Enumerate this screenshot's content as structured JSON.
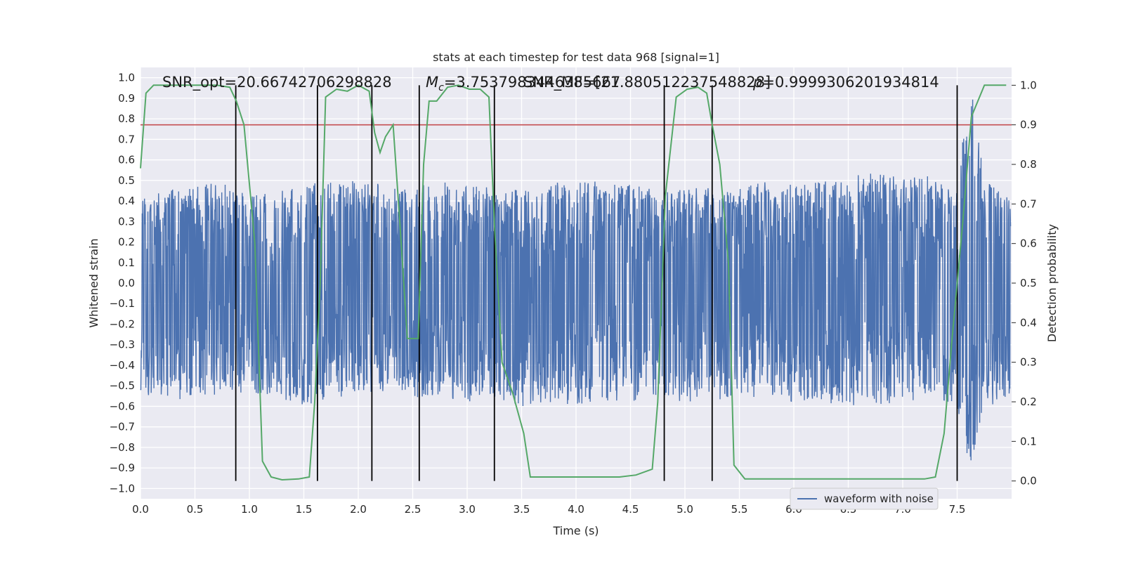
{
  "chart_data": {
    "type": "line",
    "title": "stats at each timestep for test data 968 [signal=1]",
    "xlabel": "Time (s)",
    "ylabel": "Whitened strain",
    "y2label": "Detection probability",
    "xlim": [
      0.0,
      8.0
    ],
    "ylim": [
      -1.05,
      1.05
    ],
    "y2lim": [
      -0.045,
      1.045
    ],
    "grid": true,
    "x_ticks": [
      "0.0",
      "0.5",
      "1.0",
      "1.5",
      "2.0",
      "2.5",
      "3.0",
      "3.5",
      "4.0",
      "4.5",
      "5.0",
      "5.5",
      "6.0",
      "6.5",
      "7.0",
      "7.5"
    ],
    "y_ticks": [
      "1.0",
      "0.9",
      "0.8",
      "0.7",
      "0.6",
      "0.5",
      "0.4",
      "0.3",
      "0.2",
      "0.1",
      "0.0",
      "−0.1",
      "−0.2",
      "−0.3",
      "−0.4",
      "−0.5",
      "−0.6",
      "−0.7",
      "−0.8",
      "−0.9",
      "−1.0"
    ],
    "y2_ticks": [
      "1.0",
      "0.9",
      "0.8",
      "0.7",
      "0.6",
      "0.5",
      "0.4",
      "0.3",
      "0.2",
      "0.1",
      "0.0"
    ],
    "annotations": {
      "snr_opt": "SNR_opt=20.66742706298828",
      "mc": "=3.7537983446385667",
      "mc_symbol": "M",
      "mc_sub": "c",
      "snr_mf": "SNR_MF=[21.880512237548828]",
      "p_value": "=0.9999306201934814",
      "p_symbol": "p"
    },
    "legend": {
      "placement": "lower-right",
      "entries": [
        "waveform with noise"
      ]
    },
    "series": [
      {
        "name": "waveform with noise",
        "color": "#4c72b0",
        "style": "dense noise",
        "envelope_x": [
          0.0,
          0.25,
          0.5,
          0.75,
          1.0,
          1.25,
          1.5,
          1.75,
          2.0,
          2.25,
          2.5,
          2.75,
          3.0,
          3.25,
          3.5,
          3.75,
          4.0,
          4.25,
          4.5,
          4.75,
          5.0,
          5.25,
          5.5,
          5.75,
          6.0,
          6.25,
          6.5,
          6.75,
          7.0,
          7.25,
          7.5,
          7.62,
          7.75,
          7.99
        ],
        "envelope_upper": [
          0.42,
          0.45,
          0.48,
          0.5,
          0.44,
          0.46,
          0.47,
          0.52,
          0.5,
          0.48,
          0.46,
          0.5,
          0.48,
          0.47,
          0.45,
          0.5,
          0.49,
          0.5,
          0.48,
          0.45,
          0.48,
          0.47,
          0.46,
          0.5,
          0.48,
          0.5,
          0.52,
          0.54,
          0.52,
          0.52,
          0.5,
          0.98,
          0.5,
          0.42
        ],
        "envelope_lower": [
          -0.55,
          -0.57,
          -0.56,
          -0.55,
          -0.53,
          -0.56,
          -0.6,
          -0.56,
          -0.57,
          -0.55,
          -0.57,
          -0.55,
          -0.58,
          -0.56,
          -0.6,
          -0.58,
          -0.6,
          -0.57,
          -0.58,
          -0.56,
          -0.58,
          -0.57,
          -0.56,
          -0.55,
          -0.58,
          -0.6,
          -0.6,
          -0.6,
          -0.58,
          -0.57,
          -0.6,
          -0.92,
          -0.62,
          -0.55
        ]
      },
      {
        "name": "",
        "axis": "right",
        "color": "#55a868",
        "x": [
          0.0,
          0.05,
          0.12,
          0.25,
          0.4,
          0.55,
          0.7,
          0.82,
          0.88,
          0.95,
          1.05,
          1.12,
          1.2,
          1.3,
          1.45,
          1.55,
          1.6,
          1.65,
          1.7,
          1.8,
          1.9,
          2.0,
          2.1,
          2.15,
          2.2,
          2.25,
          2.32,
          2.38,
          2.45,
          2.55,
          2.6,
          2.65,
          2.72,
          2.82,
          2.92,
          3.02,
          3.12,
          3.2,
          3.25,
          3.32,
          3.42,
          3.52,
          3.58,
          3.65,
          3.75,
          3.85,
          4.0,
          4.2,
          4.4,
          4.55,
          4.7,
          4.75,
          4.82,
          4.92,
          5.02,
          5.12,
          5.2,
          5.25,
          5.32,
          5.4,
          5.45,
          5.55,
          5.8,
          6.0,
          6.2,
          6.5,
          6.8,
          7.0,
          7.2,
          7.3,
          7.38,
          7.45,
          7.5,
          7.55,
          7.63,
          7.75,
          7.95
        ],
        "y": [
          0.79,
          0.98,
          1.0,
          1.0,
          1.0,
          1.0,
          1.0,
          0.995,
          0.96,
          0.9,
          0.6,
          0.05,
          0.01,
          0.003,
          0.005,
          0.01,
          0.2,
          0.5,
          0.97,
          0.99,
          0.985,
          1.0,
          0.985,
          0.88,
          0.83,
          0.87,
          0.9,
          0.66,
          0.36,
          0.36,
          0.8,
          0.96,
          0.96,
          0.995,
          1.0,
          0.99,
          0.99,
          0.97,
          0.65,
          0.3,
          0.22,
          0.12,
          0.01,
          0.01,
          0.01,
          0.01,
          0.01,
          0.01,
          0.01,
          0.015,
          0.03,
          0.2,
          0.72,
          0.97,
          0.99,
          0.995,
          0.98,
          0.9,
          0.8,
          0.55,
          0.04,
          0.005,
          0.005,
          0.005,
          0.005,
          0.005,
          0.005,
          0.005,
          0.005,
          0.01,
          0.12,
          0.35,
          0.5,
          0.65,
          0.92,
          1.0,
          1.0
        ]
      },
      {
        "name": "",
        "axis": "right",
        "color": "#c44e52",
        "style": "threshold",
        "x": [
          0.0,
          8.0
        ],
        "y": [
          0.9,
          0.9
        ]
      }
    ],
    "vlines": {
      "color": "#000000",
      "x": [
        0.875,
        1.625,
        2.125,
        2.56,
        3.25,
        4.81,
        5.25,
        7.5
      ]
    }
  }
}
